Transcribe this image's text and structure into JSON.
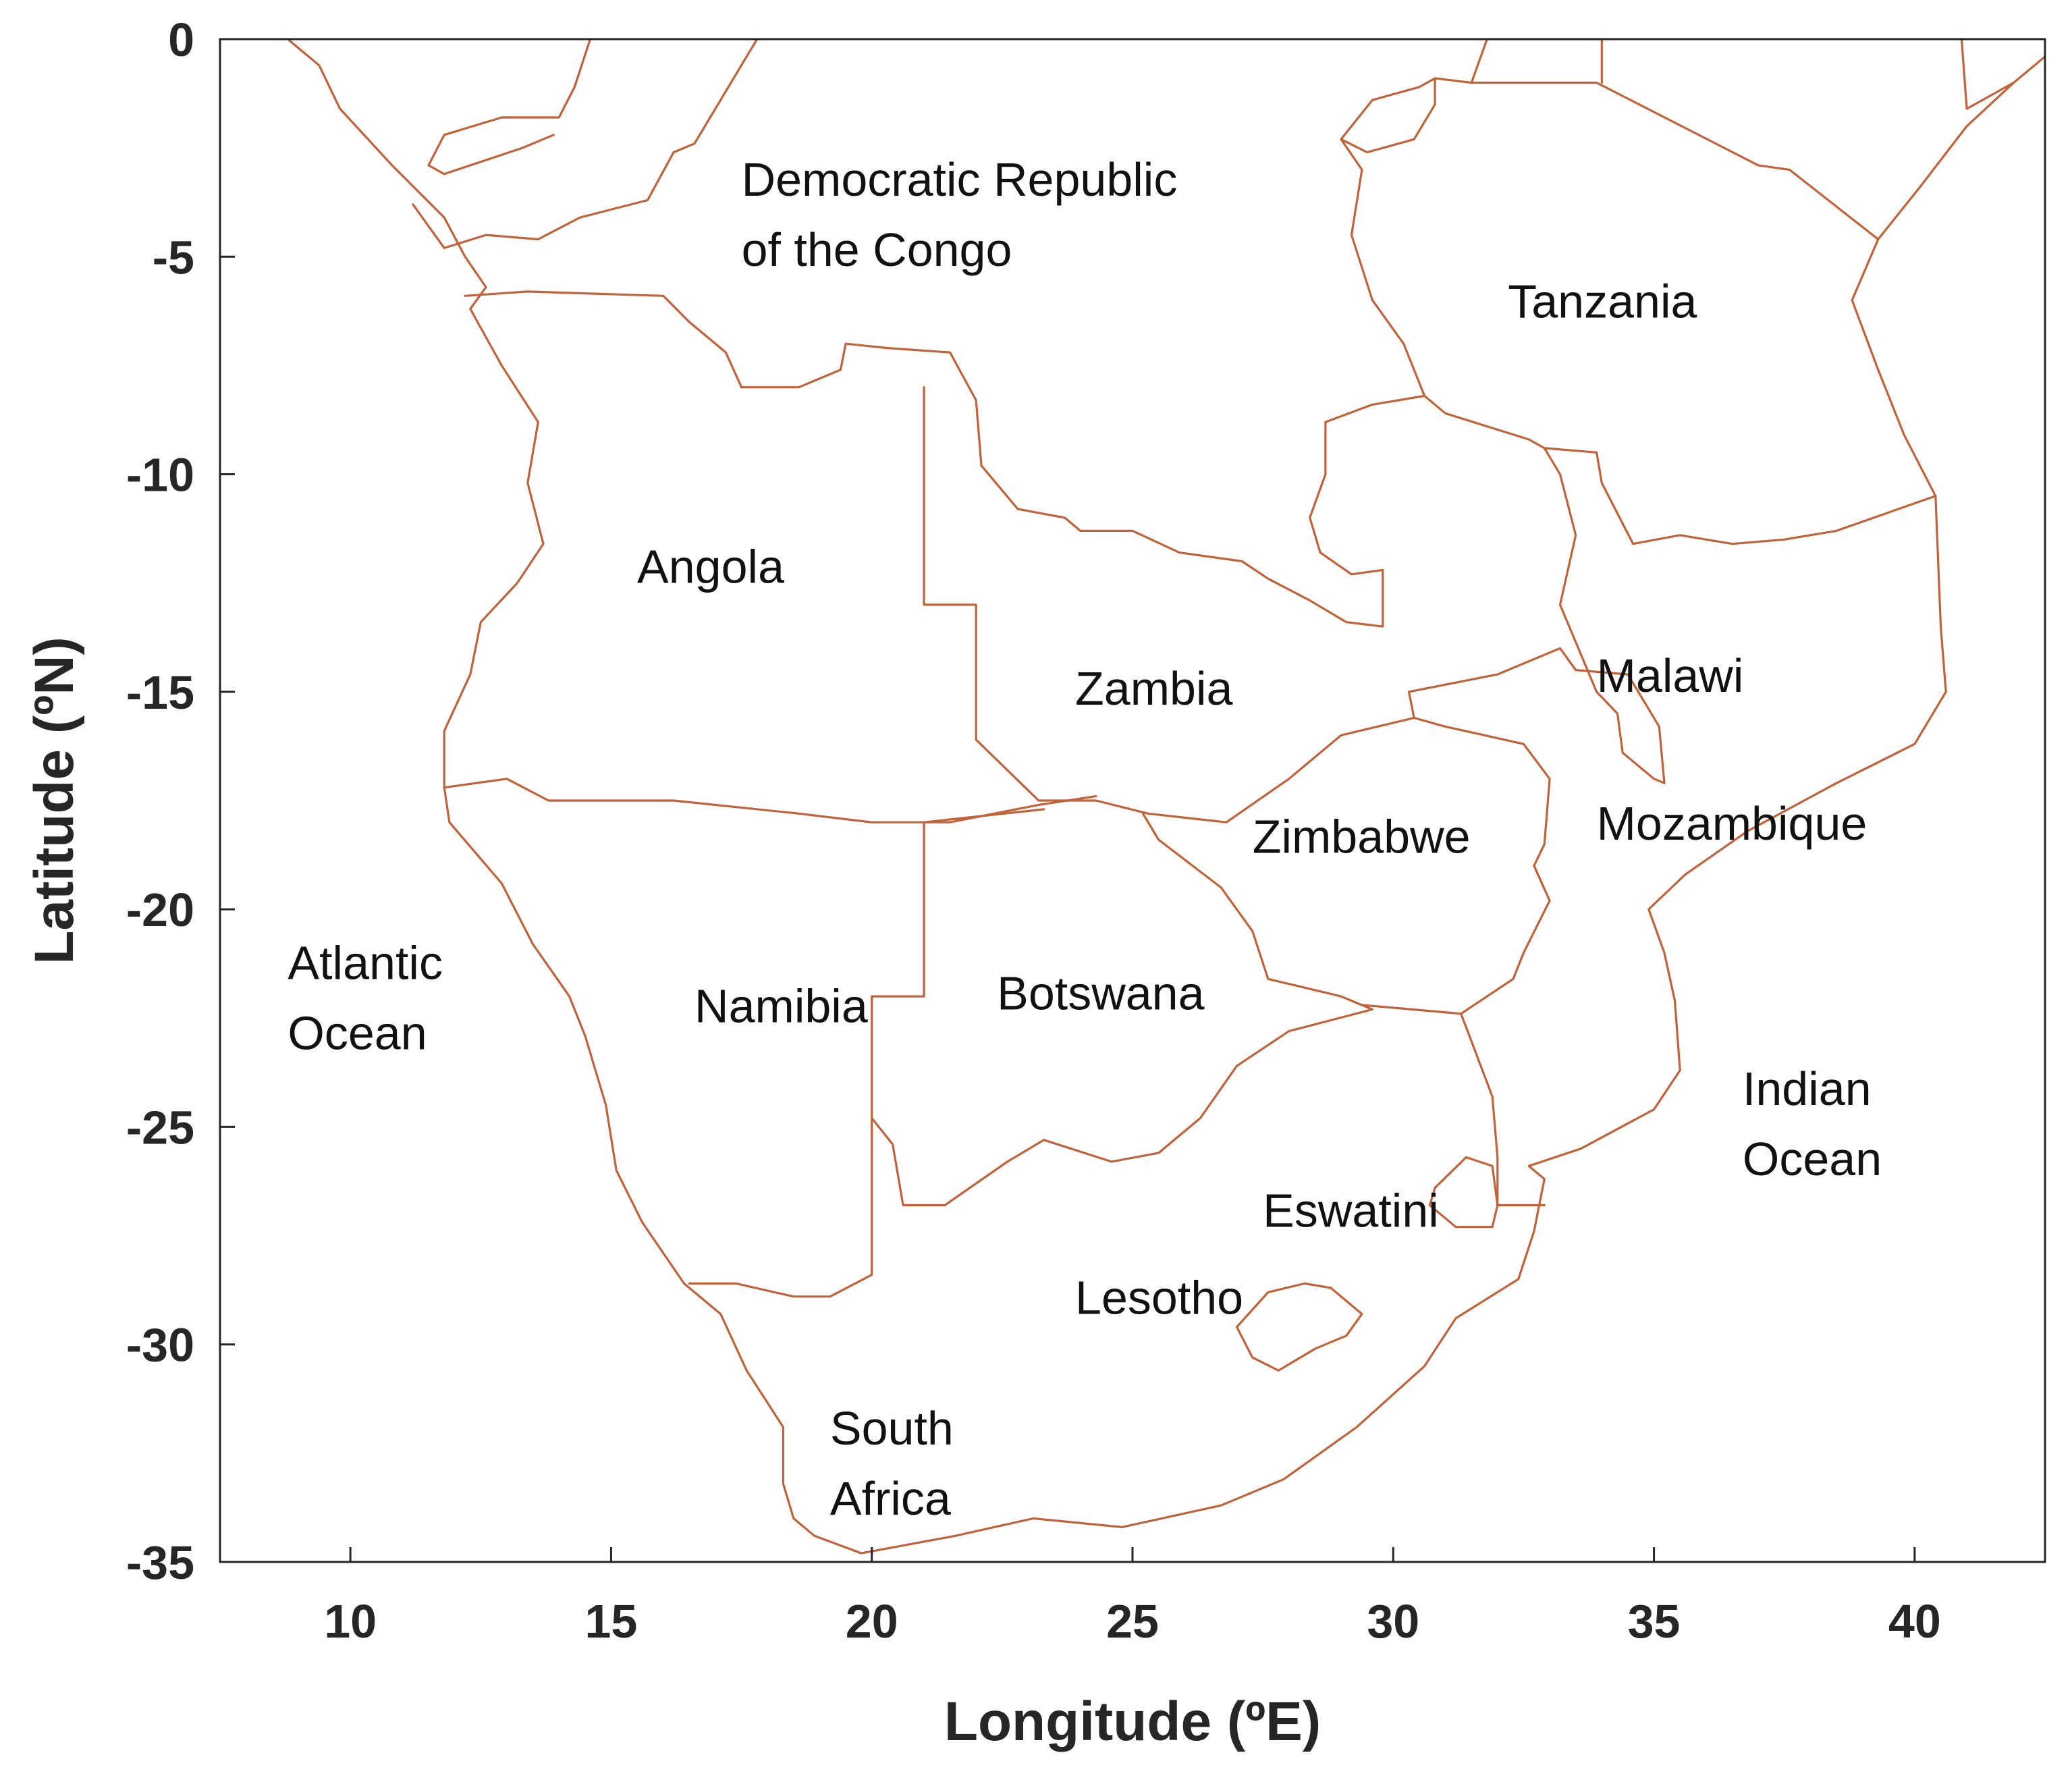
{
  "colors": {
    "border": "#c0623a",
    "axis": "#262626",
    "text": "#111111"
  },
  "axes": {
    "xlabel": "Longitude (ºE)",
    "ylabel": "Latitude (ºN)",
    "xlim": [
      7.5,
      42.5
    ],
    "ylim": [
      -35,
      0
    ],
    "xticks": [
      10,
      15,
      20,
      25,
      30,
      35,
      40
    ],
    "yticks": [
      0,
      -5,
      -10,
      -15,
      -20,
      -25,
      -30,
      -35
    ]
  },
  "labels": [
    {
      "lines": [
        "Democratic Republic",
        "of the Congo"
      ],
      "lon": 17.5,
      "lat": -3.6
    },
    {
      "lines": [
        "Tanzania"
      ],
      "lon": 32.2,
      "lat": -6.4
    },
    {
      "lines": [
        "Angola"
      ],
      "lon": 15.5,
      "lat": -12.5
    },
    {
      "lines": [
        "Zambia"
      ],
      "lon": 23.9,
      "lat": -15.3
    },
    {
      "lines": [
        "Malawi"
      ],
      "lon": 33.9,
      "lat": -15.0
    },
    {
      "lines": [
        "Zimbabwe"
      ],
      "lon": 27.3,
      "lat": -18.7
    },
    {
      "lines": [
        "Mozambique"
      ],
      "lon": 33.9,
      "lat": -18.4
    },
    {
      "lines": [
        "Atlantic",
        "Ocean"
      ],
      "lon": 8.8,
      "lat": -21.6
    },
    {
      "lines": [
        "Namibia"
      ],
      "lon": 16.6,
      "lat": -22.6
    },
    {
      "lines": [
        "Botswana"
      ],
      "lon": 22.4,
      "lat": -22.3
    },
    {
      "lines": [
        "Indian",
        "Ocean"
      ],
      "lon": 36.7,
      "lat": -24.5
    },
    {
      "lines": [
        "Eswatini"
      ],
      "lon": 27.5,
      "lat": -27.3
    },
    {
      "lines": [
        "Lesotho"
      ],
      "lon": 23.9,
      "lat": -29.3
    },
    {
      "lines": [
        "South",
        "Africa"
      ],
      "lon": 19.2,
      "lat": -32.3
    }
  ],
  "borders": [
    [
      [
        8.8,
        0
      ],
      [
        9.4,
        -0.6
      ],
      [
        9.8,
        -1.6
      ],
      [
        10.8,
        -2.9
      ],
      [
        11.8,
        -4.1
      ],
      [
        12.2,
        -5.0
      ],
      [
        12.6,
        -5.7
      ],
      [
        12.3,
        -6.2
      ],
      [
        12.9,
        -7.5
      ],
      [
        13.6,
        -8.8
      ],
      [
        13.4,
        -10.2
      ],
      [
        13.7,
        -11.6
      ],
      [
        13.2,
        -12.5
      ],
      [
        12.5,
        -13.4
      ],
      [
        12.3,
        -14.6
      ],
      [
        11.8,
        -15.9
      ],
      [
        11.8,
        -17.2
      ],
      [
        11.9,
        -18.0
      ],
      [
        12.9,
        -19.4
      ],
      [
        13.5,
        -20.8
      ],
      [
        14.2,
        -22.0
      ],
      [
        14.5,
        -22.9
      ],
      [
        14.9,
        -24.5
      ],
      [
        15.1,
        -26.0
      ],
      [
        15.6,
        -27.2
      ],
      [
        16.4,
        -28.6
      ],
      [
        17.1,
        -29.3
      ],
      [
        17.6,
        -30.6
      ],
      [
        18.3,
        -31.9
      ],
      [
        18.3,
        -33.2
      ],
      [
        18.5,
        -34.0
      ],
      [
        18.9,
        -34.4
      ],
      [
        19.8,
        -34.8
      ],
      [
        21.6,
        -34.4
      ],
      [
        23.1,
        -34.0
      ],
      [
        24.8,
        -34.2
      ],
      [
        26.7,
        -33.7
      ],
      [
        27.9,
        -33.1
      ],
      [
        29.3,
        -31.9
      ],
      [
        30.6,
        -30.5
      ],
      [
        31.2,
        -29.4
      ],
      [
        32.4,
        -28.5
      ],
      [
        32.7,
        -27.4
      ],
      [
        32.9,
        -26.2
      ],
      [
        32.6,
        -25.9
      ],
      [
        33.6,
        -25.5
      ],
      [
        35.0,
        -24.6
      ],
      [
        35.5,
        -23.7
      ],
      [
        35.4,
        -22.1
      ],
      [
        35.2,
        -21.0
      ],
      [
        34.9,
        -20.0
      ],
      [
        35.6,
        -19.2
      ],
      [
        36.8,
        -18.2
      ],
      [
        38.5,
        -17.1
      ],
      [
        40.0,
        -16.2
      ],
      [
        40.6,
        -15.0
      ],
      [
        40.5,
        -13.5
      ],
      [
        40.4,
        -10.5
      ],
      [
        39.8,
        -9.1
      ],
      [
        39.3,
        -7.6
      ],
      [
        38.8,
        -6.0
      ],
      [
        39.3,
        -4.6
      ],
      [
        40.1,
        -3.4
      ],
      [
        41.0,
        -2.0
      ],
      [
        41.9,
        -1.0
      ],
      [
        42.5,
        -0.4
      ]
    ],
    [
      [
        12.2,
        -5.9
      ],
      [
        13.4,
        -5.8
      ],
      [
        16.0,
        -5.9
      ],
      [
        16.5,
        -6.5
      ],
      [
        17.2,
        -7.2
      ],
      [
        17.5,
        -8.0
      ],
      [
        18.6,
        -8.0
      ],
      [
        19.4,
        -7.6
      ],
      [
        19.5,
        -7.0
      ],
      [
        20.3,
        -7.1
      ],
      [
        21.5,
        -7.2
      ],
      [
        22.0,
        -8.3
      ],
      [
        22.1,
        -9.8
      ],
      [
        22.8,
        -10.8
      ],
      [
        23.7,
        -11.0
      ],
      [
        24.0,
        -11.3
      ],
      [
        25.0,
        -11.3
      ],
      [
        25.9,
        -11.8
      ],
      [
        27.1,
        -12.0
      ],
      [
        27.6,
        -12.4
      ],
      [
        28.4,
        -12.9
      ],
      [
        29.1,
        -13.4
      ],
      [
        29.8,
        -13.5
      ],
      [
        29.8,
        -12.2
      ],
      [
        29.2,
        -12.3
      ],
      [
        28.6,
        -11.8
      ],
      [
        28.4,
        -11.0
      ],
      [
        28.7,
        -10.0
      ],
      [
        28.7,
        -8.8
      ],
      [
        29.6,
        -8.4
      ],
      [
        30.6,
        -8.2
      ]
    ],
    [
      [
        11.8,
        -17.2
      ],
      [
        13.0,
        -17.0
      ],
      [
        13.8,
        -17.5
      ],
      [
        16.2,
        -17.5
      ],
      [
        18.6,
        -17.8
      ],
      [
        20.0,
        -18.0
      ],
      [
        21.5,
        -18.0
      ],
      [
        23.2,
        -17.6
      ],
      [
        24.3,
        -17.4
      ]
    ],
    [
      [
        21.0,
        -13.0
      ],
      [
        22.0,
        -13.0
      ],
      [
        22.0,
        -16.1
      ],
      [
        23.2,
        -17.5
      ],
      [
        24.3,
        -17.5
      ],
      [
        25.3,
        -17.8
      ],
      [
        26.8,
        -18.0
      ],
      [
        28.0,
        -17.0
      ],
      [
        29.0,
        -16.0
      ],
      [
        30.4,
        -15.6
      ]
    ],
    [
      [
        21.0,
        -13.0
      ],
      [
        21.0,
        -8.0
      ]
    ],
    [
      [
        23.3,
        -17.7
      ],
      [
        21.0,
        -18.0
      ],
      [
        21.0,
        -22.0
      ],
      [
        20.0,
        -22.0
      ],
      [
        20.0,
        -28.4
      ],
      [
        19.2,
        -28.9
      ],
      [
        18.5,
        -28.9
      ],
      [
        17.4,
        -28.6
      ],
      [
        16.5,
        -28.6
      ]
    ],
    [
      [
        25.2,
        -17.8
      ],
      [
        25.5,
        -18.4
      ],
      [
        26.7,
        -19.5
      ],
      [
        27.3,
        -20.5
      ],
      [
        27.6,
        -21.6
      ],
      [
        29.0,
        -22.0
      ],
      [
        29.6,
        -22.3
      ],
      [
        28.0,
        -22.8
      ],
      [
        27.0,
        -23.6
      ],
      [
        26.3,
        -24.8
      ],
      [
        25.5,
        -25.6
      ],
      [
        24.6,
        -25.8
      ],
      [
        23.3,
        -25.3
      ],
      [
        22.6,
        -25.8
      ],
      [
        21.4,
        -26.8
      ],
      [
        20.6,
        -26.8
      ],
      [
        20.4,
        -25.4
      ],
      [
        20.0,
        -24.8
      ]
    ],
    [
      [
        29.4,
        -22.2
      ],
      [
        31.3,
        -22.4
      ],
      [
        31.9,
        -24.3
      ],
      [
        32.0,
        -25.7
      ],
      [
        32.0,
        -26.8
      ],
      [
        32.9,
        -26.8
      ]
    ],
    [
      [
        30.4,
        -15.6
      ],
      [
        31.0,
        -15.8
      ],
      [
        32.5,
        -16.2
      ],
      [
        33.0,
        -17.0
      ],
      [
        32.9,
        -18.5
      ],
      [
        32.7,
        -19.0
      ],
      [
        33.0,
        -19.8
      ],
      [
        32.5,
        -21.0
      ],
      [
        32.3,
        -21.6
      ],
      [
        31.3,
        -22.4
      ]
    ],
    [
      [
        30.8,
        -26.4
      ],
      [
        31.4,
        -25.7
      ],
      [
        31.9,
        -25.9
      ],
      [
        32.0,
        -26.8
      ],
      [
        31.9,
        -27.3
      ],
      [
        31.2,
        -27.3
      ],
      [
        30.7,
        -26.8
      ],
      [
        30.8,
        -26.4
      ]
    ],
    [
      [
        27.0,
        -29.6
      ],
      [
        27.6,
        -28.8
      ],
      [
        28.3,
        -28.6
      ],
      [
        28.8,
        -28.7
      ],
      [
        29.4,
        -29.3
      ],
      [
        29.1,
        -29.8
      ],
      [
        28.5,
        -30.1
      ],
      [
        27.8,
        -30.6
      ],
      [
        27.3,
        -30.3
      ],
      [
        27.0,
        -29.6
      ]
    ],
    [
      [
        30.4,
        -15.6
      ],
      [
        30.3,
        -15.0
      ],
      [
        32.0,
        -14.6
      ],
      [
        33.2,
        -14.0
      ],
      [
        33.5,
        -14.5
      ],
      [
        34.5,
        -14.6
      ],
      [
        35.1,
        -15.8
      ],
      [
        35.2,
        -17.1
      ],
      [
        35.0,
        -17.0
      ],
      [
        34.4,
        -16.4
      ],
      [
        34.3,
        -15.5
      ],
      [
        33.9,
        -15.0
      ],
      [
        33.2,
        -13.0
      ],
      [
        33.5,
        -11.4
      ],
      [
        33.2,
        -10.0
      ],
      [
        32.9,
        -9.4
      ],
      [
        33.9,
        -9.5
      ],
      [
        34.0,
        -10.2
      ],
      [
        34.6,
        -11.6
      ],
      [
        35.5,
        -11.4
      ],
      [
        36.5,
        -11.6
      ],
      [
        37.5,
        -11.5
      ],
      [
        38.5,
        -11.3
      ],
      [
        40.4,
        -10.5
      ]
    ],
    [
      [
        30.6,
        -8.2
      ],
      [
        31.0,
        -8.6
      ],
      [
        32.6,
        -9.2
      ],
      [
        32.9,
        -9.4
      ]
    ],
    [
      [
        30.6,
        -8.2
      ],
      [
        30.2,
        -7.0
      ],
      [
        29.6,
        -6.0
      ],
      [
        29.2,
        -4.5
      ],
      [
        29.4,
        -3.0
      ],
      [
        29.0,
        -2.3
      ],
      [
        29.6,
        -1.4
      ],
      [
        30.5,
        -1.1
      ],
      [
        30.8,
        -0.9
      ],
      [
        31.5,
        -1.0
      ],
      [
        33.9,
        -1.0
      ],
      [
        37.0,
        -2.9
      ],
      [
        37.6,
        -3.0
      ],
      [
        39.3,
        -4.6
      ]
    ],
    [
      [
        29.0,
        -2.3
      ],
      [
        29.5,
        -2.6
      ],
      [
        30.4,
        -2.3
      ],
      [
        30.8,
        -1.5
      ],
      [
        30.8,
        -0.9
      ]
    ],
    [
      [
        31.5,
        -1.0
      ],
      [
        31.8,
        0
      ],
      [
        34.0,
        0
      ],
      [
        34.0,
        -1.0
      ]
    ],
    [
      [
        40.9,
        0
      ],
      [
        41.0,
        -1.6
      ],
      [
        41.9,
        -1.0
      ]
    ],
    [
      [
        16.6,
        -2.4
      ],
      [
        17.8,
        0
      ]
    ],
    [
      [
        13.9,
        -2.2
      ],
      [
        13.3,
        -2.5
      ],
      [
        11.8,
        -3.1
      ],
      [
        11.5,
        -2.9
      ],
      [
        11.8,
        -2.2
      ],
      [
        12.9,
        -1.8
      ],
      [
        14.0,
        -1.8
      ],
      [
        14.3,
        -1.1
      ],
      [
        14.6,
        0
      ]
    ],
    [
      [
        11.2,
        -3.8
      ],
      [
        11.8,
        -4.8
      ],
      [
        12.6,
        -4.5
      ],
      [
        13.6,
        -4.6
      ],
      [
        14.4,
        -4.1
      ],
      [
        15.7,
        -3.7
      ],
      [
        16.2,
        -2.6
      ],
      [
        16.6,
        -2.4
      ]
    ]
  ]
}
